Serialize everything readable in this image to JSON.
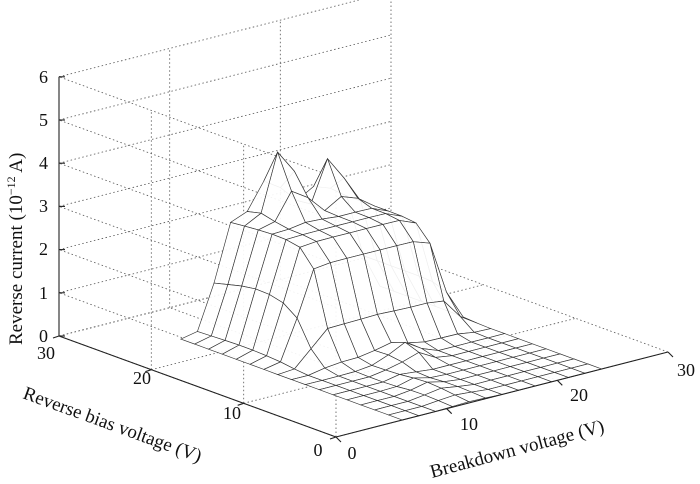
{
  "chart_data": {
    "type": "surface",
    "zlabel": "Reverse current (10",
    "zlabel_exp": "−12",
    "zlabel_unit": " A)",
    "ylabel": "Reverse bias voltage (V)",
    "xlabel": "Breakdown voltage (V)",
    "x_ticks": [
      "0",
      "10",
      "20",
      "30"
    ],
    "y_ticks": [
      "0",
      "10",
      "20",
      "30"
    ],
    "z_ticks": [
      "0",
      "1",
      "2",
      "3",
      "4",
      "5",
      "6"
    ],
    "xlim": [
      0,
      30
    ],
    "ylim": [
      0,
      30
    ],
    "zlim": [
      0,
      6
    ],
    "grid": true,
    "surface": {
      "breakdown_voltage": [
        6,
        7.5,
        9,
        10.5,
        12,
        13.5,
        15,
        16.5,
        18,
        19.5,
        21,
        22.5,
        24
      ],
      "reverse_bias_voltage": [
        0,
        1.5,
        3,
        4.5,
        6,
        7.5,
        9,
        10.5,
        12,
        13.5,
        15,
        16.5,
        18,
        19.5,
        21,
        22.5,
        24
      ],
      "peak_reverse_current": 4.2,
      "plateau_reverse_current": 2.5
    }
  }
}
